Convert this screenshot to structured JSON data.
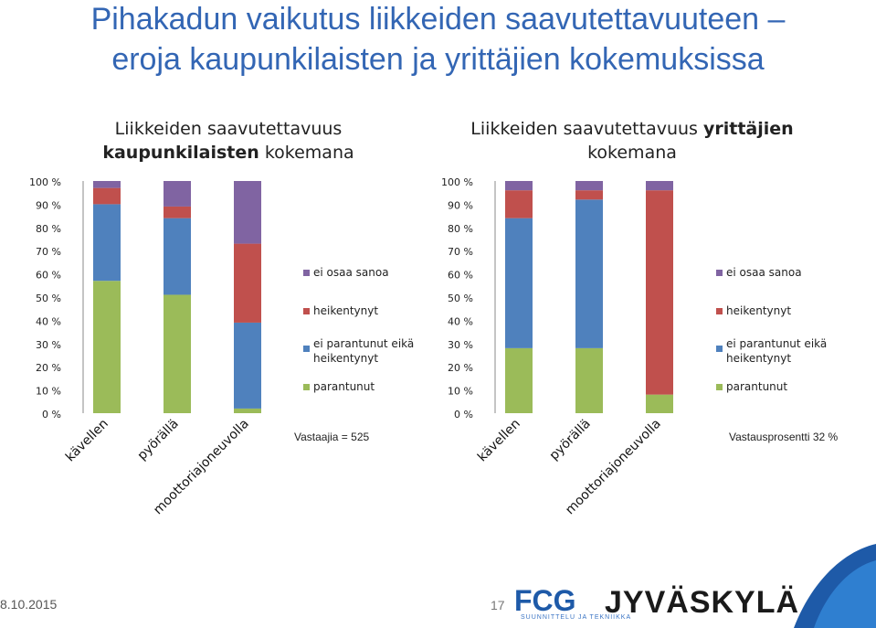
{
  "slide": {
    "title_line1": "Pihakadun vaikutus liikkeiden saavutettavuuteen –",
    "title_line2": "eroja kaupunkilaisten ja yrittäjien kokemuksissa",
    "date": "8.10.2015",
    "page_number": "17",
    "logo_fcg": "FCG",
    "logo_fcg_sub": "SUUNNITTELU JA TEKNIIKKA",
    "logo_city": "JYVÄSKYLÄ"
  },
  "colors": {
    "parantunut": "#9bbb59",
    "ei_parantunut": "#4f81bd",
    "heikentynyt": "#c0504d",
    "ei_osaa_sanoa": "#8064a2",
    "title": "#3366b4"
  },
  "chart_data": [
    {
      "type": "bar",
      "stacked": true,
      "title_part1": "Liikkeiden saavutettavuus",
      "title_bold": "kaupunkilaisten",
      "title_part2": "kokemana",
      "categories": [
        "kävellen",
        "pyörällä",
        "moottoriajoneuvolla"
      ],
      "ylim": [
        0,
        100
      ],
      "yticks": [
        "0 %",
        "10 %",
        "20 %",
        "30 %",
        "40 %",
        "50 %",
        "60 %",
        "70 %",
        "80 %",
        "90 %",
        "100 %"
      ],
      "series": [
        {
          "name": "parantunut",
          "color_key": "parantunut",
          "values": [
            57,
            51,
            2
          ]
        },
        {
          "name": "ei parantunut eikä heikentynyt",
          "color_key": "ei_parantunut",
          "values": [
            33,
            33,
            37
          ]
        },
        {
          "name": "heikentynyt",
          "color_key": "heikentynyt",
          "values": [
            7,
            5,
            34
          ]
        },
        {
          "name": "ei osaa sanoa",
          "color_key": "ei_osaa_sanoa",
          "values": [
            3,
            11,
            27
          ]
        }
      ],
      "legend_position": "right",
      "note": "Vastaajia = 525"
    },
    {
      "type": "bar",
      "stacked": true,
      "title_part1": "Liikkeiden saavutettavuus",
      "title_bold": "yrittäjien",
      "title_part2": "kokemana",
      "categories": [
        "kävellen",
        "pyörällä",
        "moottoriajoneuvolla"
      ],
      "ylim": [
        0,
        100
      ],
      "yticks": [
        "0 %",
        "10 %",
        "20 %",
        "30 %",
        "40 %",
        "50 %",
        "60 %",
        "70 %",
        "80 %",
        "90 %",
        "100 %"
      ],
      "series": [
        {
          "name": "parantunut",
          "color_key": "parantunut",
          "values": [
            28,
            28,
            8
          ]
        },
        {
          "name": "ei parantunut eikä heikentynyt",
          "color_key": "ei_parantunut",
          "values": [
            56,
            64,
            0
          ]
        },
        {
          "name": "heikentynyt",
          "color_key": "heikentynyt",
          "values": [
            12,
            4,
            88
          ]
        },
        {
          "name": "ei osaa sanoa",
          "color_key": "ei_osaa_sanoa",
          "values": [
            4,
            4,
            4
          ]
        }
      ],
      "legend_position": "right",
      "note": "Vastausprosentti 32 %"
    }
  ]
}
